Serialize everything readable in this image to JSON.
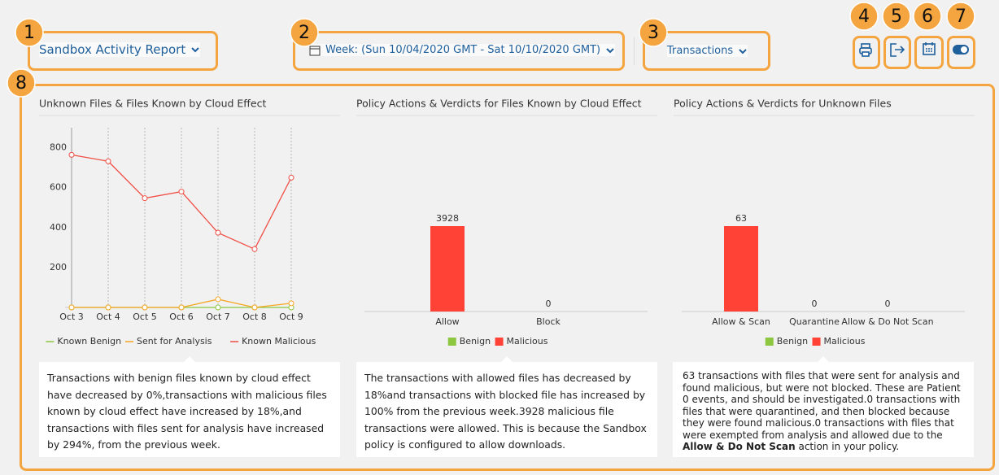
{
  "callouts": [
    1,
    2,
    3,
    4,
    5,
    6,
    7,
    8
  ],
  "toolbar": {
    "report_title": "Sandbox Activity Report",
    "week": "Week: (Sun 10/04/2020 GMT - Sat 10/10/2020 GMT)",
    "metric": "Transactions"
  },
  "chart_data": [
    {
      "type": "line",
      "title": "Unknown Files & Files Known by Cloud Effect",
      "categories": [
        "Oct 3",
        "Oct 4",
        "Oct 5",
        "Oct 6",
        "Oct 7",
        "Oct 8",
        "Oct 9"
      ],
      "series": [
        {
          "name": "Known Benign",
          "color": "#8dc63f",
          "values": [
            0,
            0,
            0,
            0,
            0,
            0,
            0
          ]
        },
        {
          "name": "Sent for Analysis",
          "color": "#f5a623",
          "values": [
            0,
            0,
            0,
            0,
            41,
            0,
            21
          ]
        },
        {
          "name": "Known Malicious",
          "color": "#f04e45",
          "values": [
            764,
            732,
            547,
            580,
            374,
            292,
            650
          ]
        }
      ],
      "ylim": [
        0,
        900
      ],
      "yticks": [
        200,
        400,
        600,
        800
      ],
      "grid": "x"
    },
    {
      "type": "bar",
      "title": "Policy Actions & Verdicts for Files Known by Cloud Effect",
      "categories": [
        "Allow",
        "Block"
      ],
      "series": [
        {
          "name": "Benign",
          "color": "#8dc63f",
          "values": [
            0,
            0
          ]
        },
        {
          "name": "Malicious",
          "color": "#ff4136",
          "values": [
            3928,
            0
          ],
          "data_labels": true
        }
      ]
    },
    {
      "type": "bar",
      "title": "Policy Actions & Verdicts for Unknown Files",
      "categories": [
        "Allow & Scan",
        "Quarantine",
        "Allow & Do Not Scan"
      ],
      "series": [
        {
          "name": "Benign",
          "color": "#8dc63f",
          "values": [
            0,
            0,
            0
          ]
        },
        {
          "name": "Malicious",
          "color": "#ff4136",
          "values": [
            63,
            0,
            0
          ],
          "data_labels": true
        }
      ]
    }
  ],
  "summaries": [
    {
      "text": "Transactions with benign files known by cloud effect have decreased by 0%,transactions with malicious files known by cloud effect have increased by 18%,and transactions with files sent for analysis have increased by 294%, from the previous week."
    },
    {
      "text": "The transactions with allowed files has decreased by 18%and transactions with blocked file has increased by 100% from the previous week.3928 malicious file transactions were allowed. This is because the Sandbox policy is configured to allow downloads."
    },
    {
      "text": "63 transactions with files that were sent for analysis and found malicious, but were not blocked. These are Patient 0 events, and should be investigated.0 transactions with files that were quarantined, and then blocked because they were found malicious.0 transactions with files that were exempted from analysis and allowed due to the ",
      "bold": "Allow & Do Not Scan",
      "after": " action in your policy."
    }
  ]
}
